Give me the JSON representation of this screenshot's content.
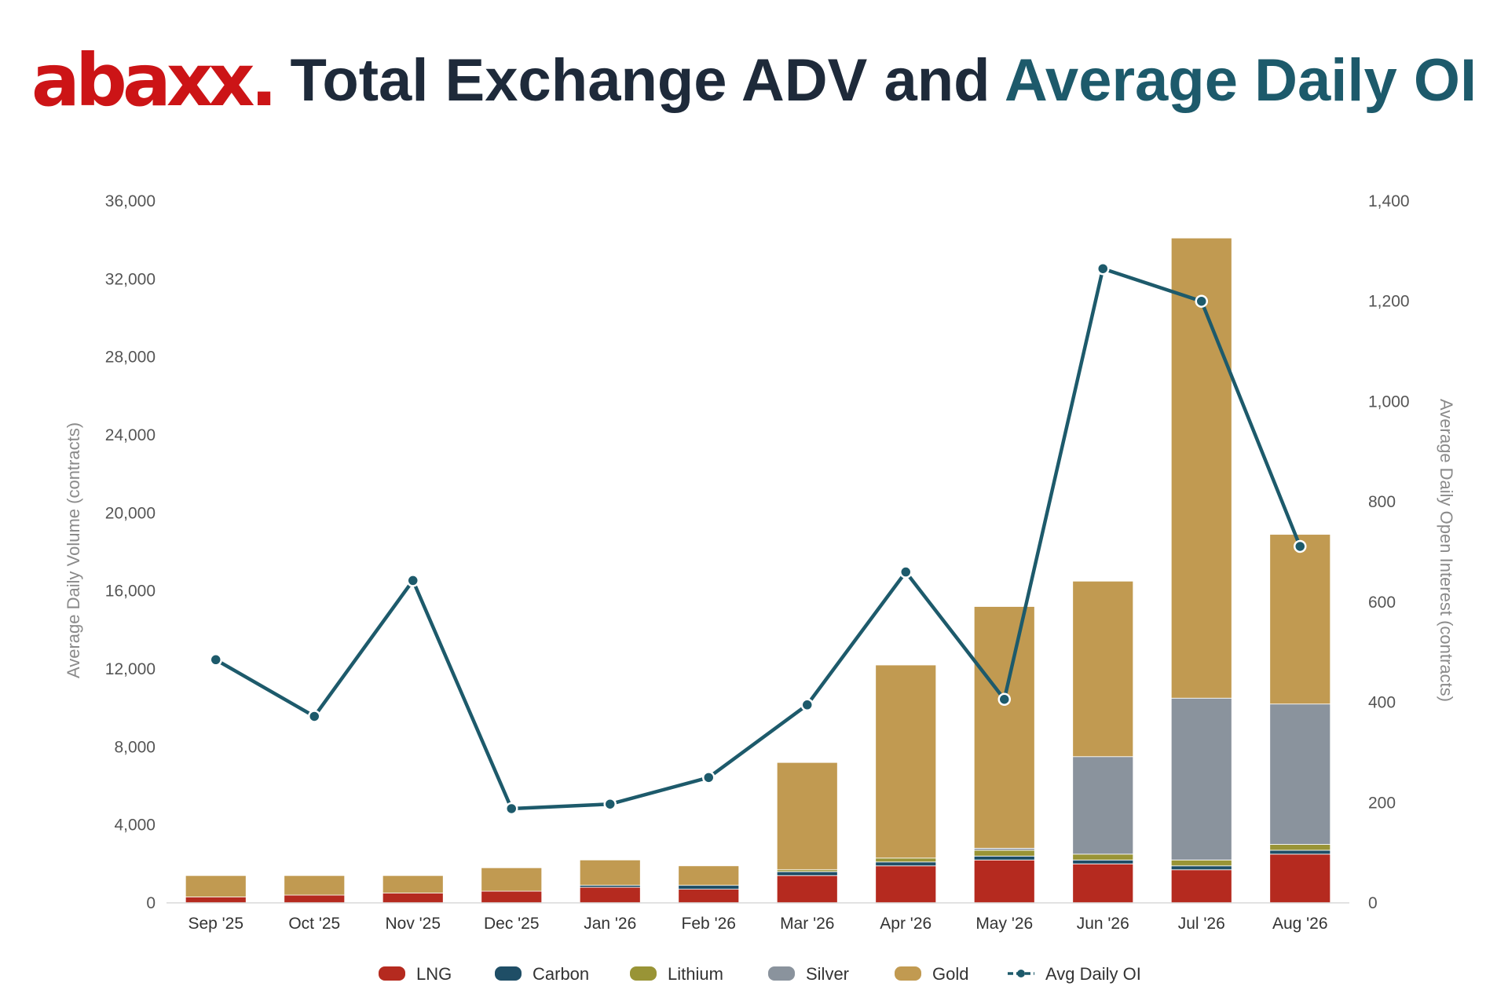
{
  "header": {
    "logo_text": "abaxx.",
    "title_part1": "Total Exchange ADV and ",
    "title_part2": "Average Daily OI"
  },
  "colors": {
    "logo": "#cc1416",
    "title_dark": "#1e2a3a",
    "title_accent": "#1d5a6b",
    "axis_text": "#555555"
  },
  "chart_data": {
    "type": "bar",
    "stacked": true,
    "categories": [
      "Sep '25",
      "Oct '25",
      "Nov '25",
      "Dec '25",
      "Jan '26",
      "Feb '26",
      "Mar '26",
      "Apr '26",
      "May '26",
      "Jun '26",
      "Jul '26",
      "Aug '26"
    ],
    "series": [
      {
        "name": "LNG",
        "axis": "left",
        "color": "#b52a1f",
        "values": [
          300,
          400,
          500,
          600,
          800,
          700,
          1400,
          1900,
          2200,
          2000,
          1700,
          2500
        ]
      },
      {
        "name": "Carbon",
        "axis": "left",
        "color": "#1f4e66",
        "values": [
          0,
          0,
          0,
          0,
          100,
          200,
          200,
          200,
          200,
          200,
          200,
          200
        ]
      },
      {
        "name": "Lithium",
        "axis": "left",
        "color": "#999436",
        "values": [
          0,
          0,
          0,
          0,
          0,
          0,
          100,
          200,
          300,
          300,
          300,
          300
        ]
      },
      {
        "name": "Silver",
        "axis": "left",
        "color": "#8a939d",
        "values": [
          0,
          0,
          0,
          0,
          0,
          0,
          0,
          0,
          100,
          5000,
          8300,
          7200
        ]
      },
      {
        "name": "Gold",
        "axis": "left",
        "color": "#c19a51",
        "values": [
          1100,
          1000,
          900,
          1200,
          1300,
          1000,
          5500,
          9900,
          12400,
          9000,
          23600,
          8700
        ]
      },
      {
        "name": "Avg Daily OI",
        "axis": "right",
        "type": "line",
        "color": "#1d5a6b",
        "values": [
          485,
          372,
          643,
          188,
          197,
          250,
          395,
          660,
          406,
          1265,
          1200,
          711
        ]
      }
    ],
    "ylabel": "Average Daily Volume (contracts)",
    "y2label": "Average Daily Open Interest (contracts)",
    "ylim": [
      0,
      36000
    ],
    "y2lim": [
      0,
      1400
    ],
    "yticks": [
      "0",
      "4,000",
      "8,000",
      "12,000",
      "16,000",
      "20,000",
      "24,000",
      "28,000",
      "32,000",
      "36,000"
    ],
    "y2ticks": [
      "0",
      "200",
      "400",
      "600",
      "800",
      "1,000",
      "1,200",
      "1,400"
    ],
    "legend_position": "bottom",
    "grid": false
  }
}
